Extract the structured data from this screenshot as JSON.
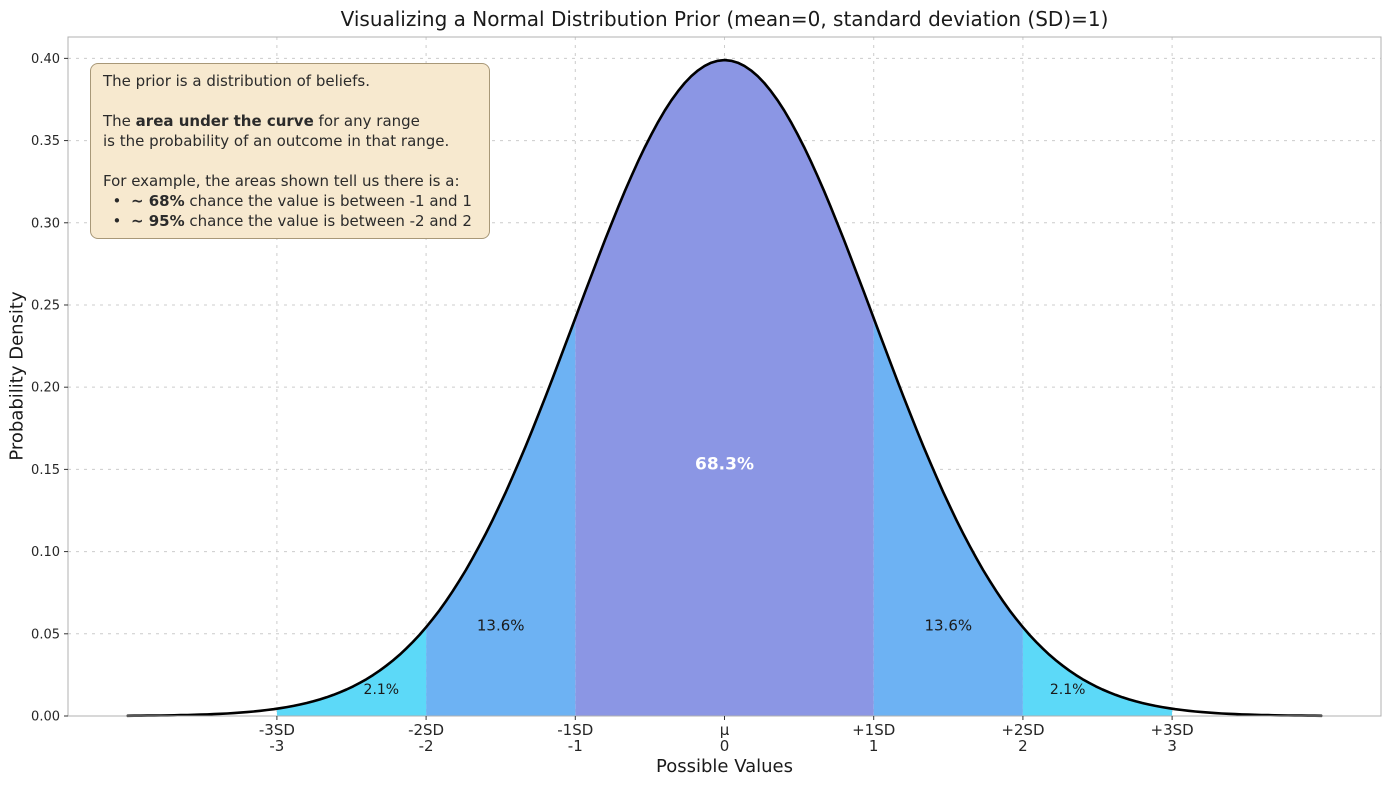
{
  "chart_data": {
    "type": "area",
    "title": "Visualizing a Normal Distribution Prior (mean=0, standard deviation (SD)=1)",
    "xlabel": "Possible Values",
    "ylabel": "Probability Density",
    "xlim": [
      -4.4,
      4.4
    ],
    "ylim": [
      0,
      0.413
    ],
    "grid": true,
    "grid_style": "dashed",
    "legend": "none",
    "curve_color": "#000000",
    "curve_width": 2.6,
    "distribution": {
      "name": "normal",
      "mean": 0,
      "sd": 1,
      "peak_density": 0.3989,
      "draw_range": [
        -4,
        4
      ]
    },
    "yticks": [
      "0.00",
      "0.05",
      "0.10",
      "0.15",
      "0.20",
      "0.25",
      "0.30",
      "0.35",
      "0.40"
    ],
    "xticks": [
      {
        "value": -3,
        "line1": "-3SD",
        "line2": "-3"
      },
      {
        "value": -2,
        "line1": "-2SD",
        "line2": "-2"
      },
      {
        "value": -1,
        "line1": "-1SD",
        "line2": "-1"
      },
      {
        "value": 0,
        "line1": "μ",
        "line2": "0"
      },
      {
        "value": 1,
        "line1": "+1SD",
        "line2": "1"
      },
      {
        "value": 2,
        "line1": "+2SD",
        "line2": "2"
      },
      {
        "value": 3,
        "line1": "+3SD",
        "line2": "3"
      }
    ],
    "regions": [
      {
        "from": -1,
        "to": 1,
        "pct": 68.3,
        "color": "#8b96e4",
        "label": "68.3%",
        "label_at": [
          0,
          0.15
        ],
        "label_color": "#ffffff",
        "label_bold": true,
        "label_size": 17
      },
      {
        "from": -2,
        "to": -1,
        "pct": 13.6,
        "color": "#6db2f3",
        "label": "13.6%",
        "label_at": [
          -1.5,
          0.052
        ],
        "label_color": "#1a1a1a",
        "label_bold": false,
        "label_size": 15
      },
      {
        "from": 1,
        "to": 2,
        "pct": 13.6,
        "color": "#6db2f3",
        "label": "13.6%",
        "label_at": [
          1.5,
          0.052
        ],
        "label_color": "#1a1a1a",
        "label_bold": false,
        "label_size": 15
      },
      {
        "from": -3,
        "to": -2,
        "pct": 2.1,
        "color": "#5cd9f8",
        "label": "2.1%",
        "label_at": [
          -2.3,
          0.0135
        ],
        "label_color": "#1a1a1a",
        "label_bold": false,
        "label_size": 14
      },
      {
        "from": 2,
        "to": 3,
        "pct": 2.1,
        "color": "#5cd9f8",
        "label": "2.1%",
        "label_at": [
          2.3,
          0.0135
        ],
        "label_color": "#1a1a1a",
        "label_bold": false,
        "label_size": 14
      }
    ],
    "note": {
      "bg": "#f7e9cf",
      "border": "#a89878",
      "lines": [
        [
          {
            "t": "The prior is a distribution of beliefs."
          }
        ],
        [],
        [
          {
            "t": "The "
          },
          {
            "t": "area under the curve",
            "b": true
          },
          {
            "t": " for any range"
          }
        ],
        [
          {
            "t": "is the probability of an outcome in that range."
          }
        ],
        [],
        [
          {
            "t": "For example, the areas shown tell us there is a:"
          }
        ],
        [
          {
            "t": "  •  "
          },
          {
            "t": "~ 68%",
            "b": true
          },
          {
            "t": " chance the value is between -1 and 1"
          }
        ],
        [
          {
            "t": "  •  "
          },
          {
            "t": "~ 95%",
            "b": true
          },
          {
            "t": " chance the value is between -2 and 2"
          }
        ]
      ]
    }
  }
}
